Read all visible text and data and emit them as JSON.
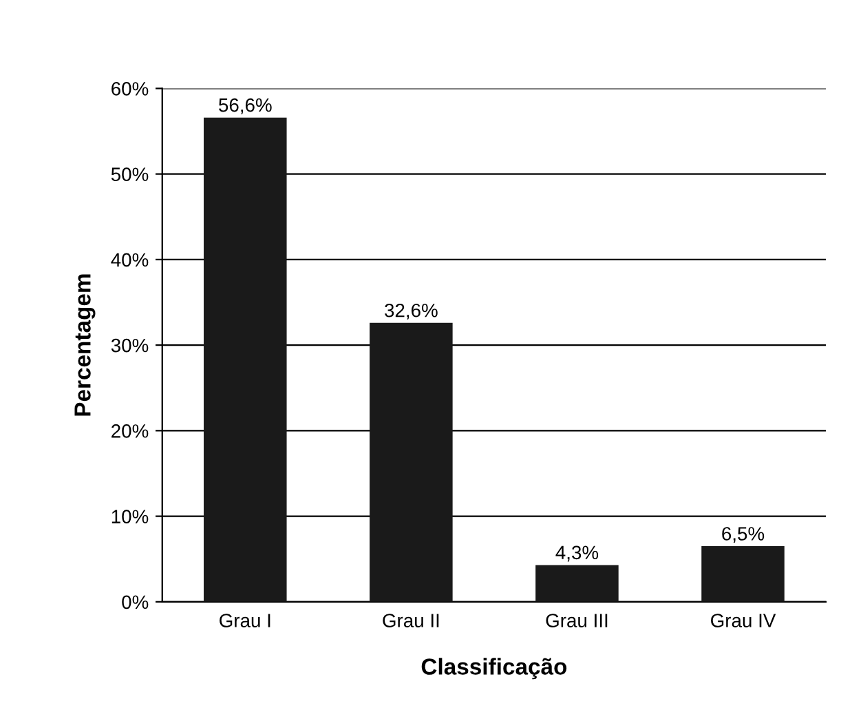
{
  "chart_data": {
    "type": "bar",
    "xlabel": "Classificação",
    "ylabel": "Percentagem",
    "categories": [
      "Grau I",
      "Grau II",
      "Grau III",
      "Grau IV"
    ],
    "values": [
      56.6,
      32.6,
      4.3,
      6.5
    ],
    "value_labels": [
      "56,6%",
      "32,6%",
      "4,3%",
      "6,5%"
    ],
    "color": "#1a1a1a",
    "ylim": [
      0,
      60
    ],
    "yticks": [
      {
        "value": 0,
        "label": "0%"
      },
      {
        "value": 10,
        "label": "10%"
      },
      {
        "value": 20,
        "label": "20%"
      },
      {
        "value": 30,
        "label": "30%"
      },
      {
        "value": 40,
        "label": "40%"
      },
      {
        "value": 50,
        "label": "50%"
      },
      {
        "value": 60,
        "label": "60%"
      }
    ],
    "grid": "y"
  }
}
